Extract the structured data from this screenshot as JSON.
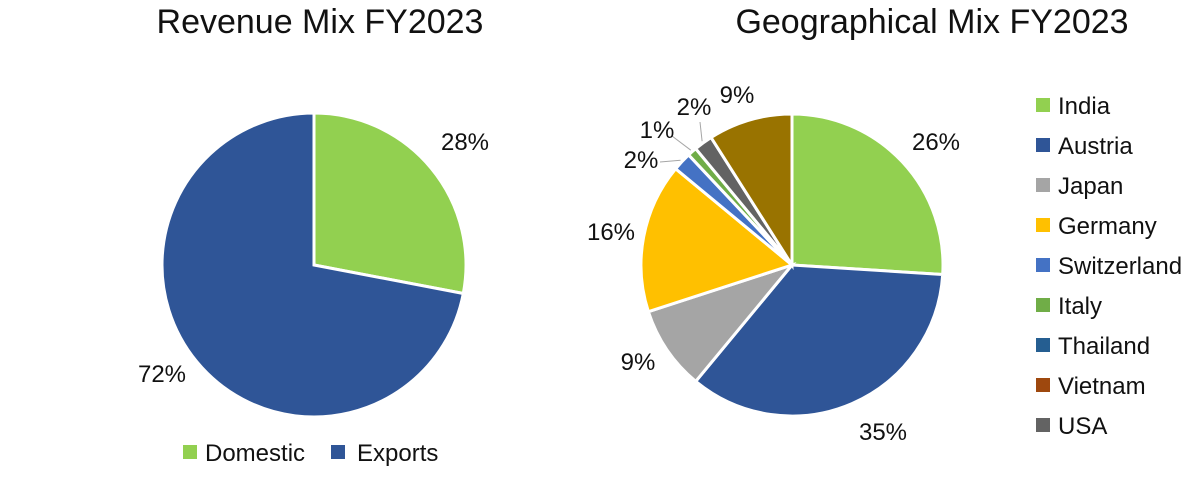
{
  "chart_data": [
    {
      "type": "pie",
      "title": "Revenue Mix FY2023",
      "categories": [
        "Domestic",
        "Exports"
      ],
      "values": [
        28,
        72
      ],
      "data_labels": [
        "28%",
        "72%"
      ],
      "colors": [
        "#92d050",
        "#2f5597"
      ],
      "legend": "bottom",
      "start_angle": "12 o'clock, clockwise"
    },
    {
      "type": "pie",
      "title": "Geographical Mix FY2023",
      "categories": [
        "India",
        "Austria",
        "Japan",
        "Germany",
        "Switzerland",
        "Italy",
        "Thailand",
        "Vietnam",
        "USA"
      ],
      "slices": [
        {
          "name": "India",
          "value": 26,
          "label": "26%"
        },
        {
          "name": "Austria",
          "value": 35,
          "label": "35%"
        },
        {
          "name": "Japan",
          "value": 9,
          "label": "9%"
        },
        {
          "name": "Germany",
          "value": 16,
          "label": "16%"
        },
        {
          "name": "Switzerland",
          "value": 2,
          "label": "2%"
        },
        {
          "name": "Italy",
          "value": 1,
          "label": "1%"
        },
        {
          "name": "Thailand",
          "value": 0,
          "label": ""
        },
        {
          "name": "Vietnam",
          "value": 0,
          "label": ""
        },
        {
          "name": "USA",
          "value": 2,
          "label": "2%"
        },
        {
          "name": "",
          "value": 9,
          "label": "9%"
        }
      ],
      "colors": [
        "#92d050",
        "#2f5597",
        "#a5a5a5",
        "#ffc000",
        "#4472c4",
        "#70ad47",
        "#255e91",
        "#9e480e",
        "#636363",
        "#997300"
      ],
      "legend": "right",
      "start_angle": "12 o'clock, clockwise"
    }
  ]
}
